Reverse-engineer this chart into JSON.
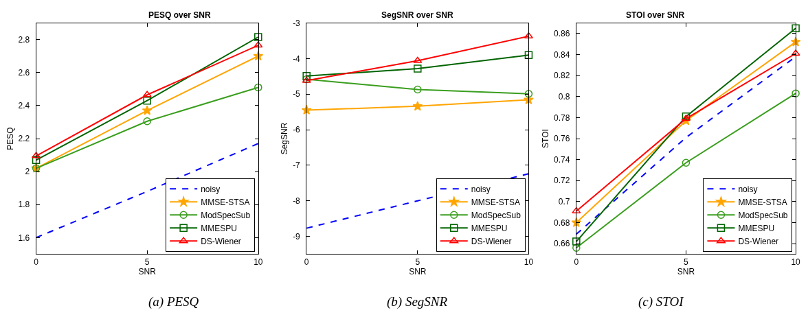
{
  "chart_data": [
    {
      "type": "line",
      "title": "PESQ over SNR",
      "xlabel": "SNR",
      "ylabel": "PESQ",
      "x": [
        0,
        5,
        10
      ],
      "xlim": [
        0,
        10
      ],
      "xticks": [
        0,
        5,
        10
      ],
      "ylim": [
        1.5,
        2.9
      ],
      "yticks": [
        1.6,
        1.8,
        2,
        2.2,
        2.4,
        2.6,
        2.8
      ],
      "legend": "bottom right",
      "annotations": [
        "(a) PESQ"
      ],
      "series": [
        {
          "name": "noisy",
          "color": "#0000ff",
          "values": [
            1.6,
            1.88,
            2.17
          ],
          "marker": "none",
          "line_style": "dashed"
        },
        {
          "name": "MMSE-STSA",
          "color": "#ffa500",
          "values": [
            2.02,
            2.37,
            2.7
          ],
          "marker": "star",
          "line_style": "solid"
        },
        {
          "name": "ModSpecSub",
          "color": "#3a9e1e",
          "values": [
            2.02,
            2.305,
            2.51
          ],
          "marker": "circle",
          "line_style": "solid"
        },
        {
          "name": "MMESPU",
          "color": "#006400",
          "values": [
            2.07,
            2.43,
            2.815
          ],
          "marker": "square",
          "line_style": "solid"
        },
        {
          "name": "DS-Wiener",
          "color": "#ff0000",
          "values": [
            2.095,
            2.465,
            2.765
          ],
          "marker": "triangle",
          "line_style": "solid"
        }
      ]
    },
    {
      "type": "line",
      "title": "SegSNR over SNR",
      "xlabel": "SNR",
      "ylabel": "SegSNR",
      "x": [
        0,
        5,
        10
      ],
      "xlim": [
        0,
        10
      ],
      "xticks": [
        0,
        5,
        10
      ],
      "ylim": [
        -9.5,
        -3
      ],
      "yticks": [
        -9,
        -8,
        -7,
        -6,
        -5,
        -4,
        -3
      ],
      "legend": "bottom right",
      "annotations": [
        "(b) SegSNR"
      ],
      "series": [
        {
          "name": "noisy",
          "color": "#0000ff",
          "values": [
            -8.77,
            -8.0,
            -7.24
          ],
          "marker": "none",
          "line_style": "dashed"
        },
        {
          "name": "MMSE-STSA",
          "color": "#ffa500",
          "values": [
            -5.45,
            -5.34,
            -5.16
          ],
          "marker": "star",
          "line_style": "solid"
        },
        {
          "name": "ModSpecSub",
          "color": "#3a9e1e",
          "values": [
            -4.58,
            -4.87,
            -4.99
          ],
          "marker": "circle",
          "line_style": "solid"
        },
        {
          "name": "MMESPU",
          "color": "#006400",
          "values": [
            -4.49,
            -4.28,
            -3.9
          ],
          "marker": "square",
          "line_style": "solid"
        },
        {
          "name": "DS-Wiener",
          "color": "#ff0000",
          "values": [
            -4.62,
            -4.06,
            -3.37
          ],
          "marker": "triangle",
          "line_style": "solid"
        }
      ]
    },
    {
      "type": "line",
      "title": "STOI over SNR",
      "xlabel": "SNR",
      "ylabel": "STOI",
      "x": [
        0,
        5,
        10
      ],
      "xlim": [
        0,
        10
      ],
      "xticks": [
        0,
        5,
        10
      ],
      "ylim": [
        0.65,
        0.87
      ],
      "yticks": [
        0.66,
        0.68,
        0.7,
        0.72,
        0.74,
        0.76,
        0.78,
        0.8,
        0.82,
        0.84,
        0.86
      ],
      "legend": "bottom right",
      "annotations": [
        "(c) STOI"
      ],
      "series": [
        {
          "name": "noisy",
          "color": "#0000ff",
          "values": [
            0.669,
            0.761,
            0.838
          ],
          "marker": "none",
          "line_style": "dashed"
        },
        {
          "name": "MMSE-STSA",
          "color": "#ffa500",
          "values": [
            0.68,
            0.777,
            0.852
          ],
          "marker": "star",
          "line_style": "solid"
        },
        {
          "name": "ModSpecSub",
          "color": "#3a9e1e",
          "values": [
            0.656,
            0.737,
            0.803
          ],
          "marker": "circle",
          "line_style": "solid"
        },
        {
          "name": "MMESPU",
          "color": "#006400",
          "values": [
            0.662,
            0.781,
            0.865
          ],
          "marker": "square",
          "line_style": "solid"
        },
        {
          "name": "DS-Wiener",
          "color": "#ff0000",
          "values": [
            0.691,
            0.779,
            0.841
          ],
          "marker": "triangle",
          "line_style": "solid"
        }
      ]
    }
  ]
}
